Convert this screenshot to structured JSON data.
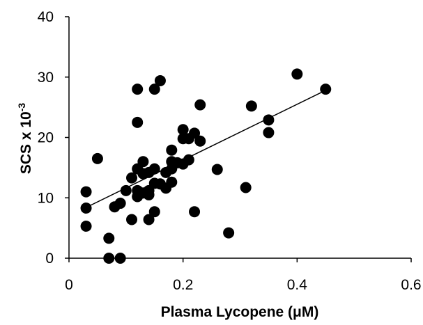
{
  "chart_data": {
    "type": "scatter",
    "title": "",
    "xlabel": "Plasma Lycopene (μM)",
    "ylabel": "SCS x 10-3",
    "ylabel_parts": {
      "base": "SCS x 10",
      "superscript": "-3"
    },
    "xlim": [
      0,
      0.6
    ],
    "ylim": [
      0,
      40
    ],
    "x_ticks": [
      "0",
      "0.2",
      "0.4",
      "0.6"
    ],
    "y_ticks": [
      "0",
      "10",
      "20",
      "30",
      "40"
    ],
    "x_tick_values": [
      0,
      0.2,
      0.4,
      0.6
    ],
    "y_tick_values": [
      0,
      10,
      20,
      30,
      40
    ],
    "grid": false,
    "legend": "none",
    "marker_color": "#000000",
    "series": [
      {
        "points": [
          [
            0.03,
            11.0
          ],
          [
            0.03,
            8.3
          ],
          [
            0.03,
            5.3
          ],
          [
            0.05,
            16.5
          ],
          [
            0.07,
            3.3
          ],
          [
            0.07,
            0.0
          ],
          [
            0.08,
            8.5
          ],
          [
            0.09,
            9.1
          ],
          [
            0.09,
            0.0
          ],
          [
            0.1,
            11.2
          ],
          [
            0.11,
            13.3
          ],
          [
            0.11,
            6.4
          ],
          [
            0.12,
            28.0
          ],
          [
            0.12,
            22.5
          ],
          [
            0.12,
            14.8
          ],
          [
            0.12,
            11.2
          ],
          [
            0.12,
            10.2
          ],
          [
            0.13,
            16.0
          ],
          [
            0.13,
            14.0
          ],
          [
            0.13,
            10.8
          ],
          [
            0.14,
            14.2
          ],
          [
            0.14,
            11.2
          ],
          [
            0.14,
            10.5
          ],
          [
            0.14,
            6.4
          ],
          [
            0.15,
            28.0
          ],
          [
            0.15,
            14.8
          ],
          [
            0.15,
            12.4
          ],
          [
            0.15,
            7.7
          ],
          [
            0.16,
            29.4
          ],
          [
            0.16,
            12.3
          ],
          [
            0.17,
            14.2
          ],
          [
            0.17,
            11.6
          ],
          [
            0.18,
            17.9
          ],
          [
            0.18,
            16.0
          ],
          [
            0.18,
            14.8
          ],
          [
            0.18,
            12.6
          ],
          [
            0.19,
            15.8
          ],
          [
            0.2,
            21.3
          ],
          [
            0.2,
            19.8
          ],
          [
            0.2,
            15.6
          ],
          [
            0.21,
            19.8
          ],
          [
            0.21,
            16.3
          ],
          [
            0.22,
            20.7
          ],
          [
            0.22,
            7.7
          ],
          [
            0.23,
            25.4
          ],
          [
            0.23,
            19.4
          ],
          [
            0.26,
            14.7
          ],
          [
            0.28,
            4.2
          ],
          [
            0.31,
            11.7
          ],
          [
            0.32,
            25.2
          ],
          [
            0.35,
            22.9
          ],
          [
            0.35,
            20.8
          ],
          [
            0.4,
            30.5
          ],
          [
            0.45,
            28.0
          ]
        ]
      }
    ],
    "trendline": {
      "type": "linear",
      "x": [
        0.03,
        0.45
      ],
      "y": [
        8.4,
        27.8
      ]
    }
  }
}
